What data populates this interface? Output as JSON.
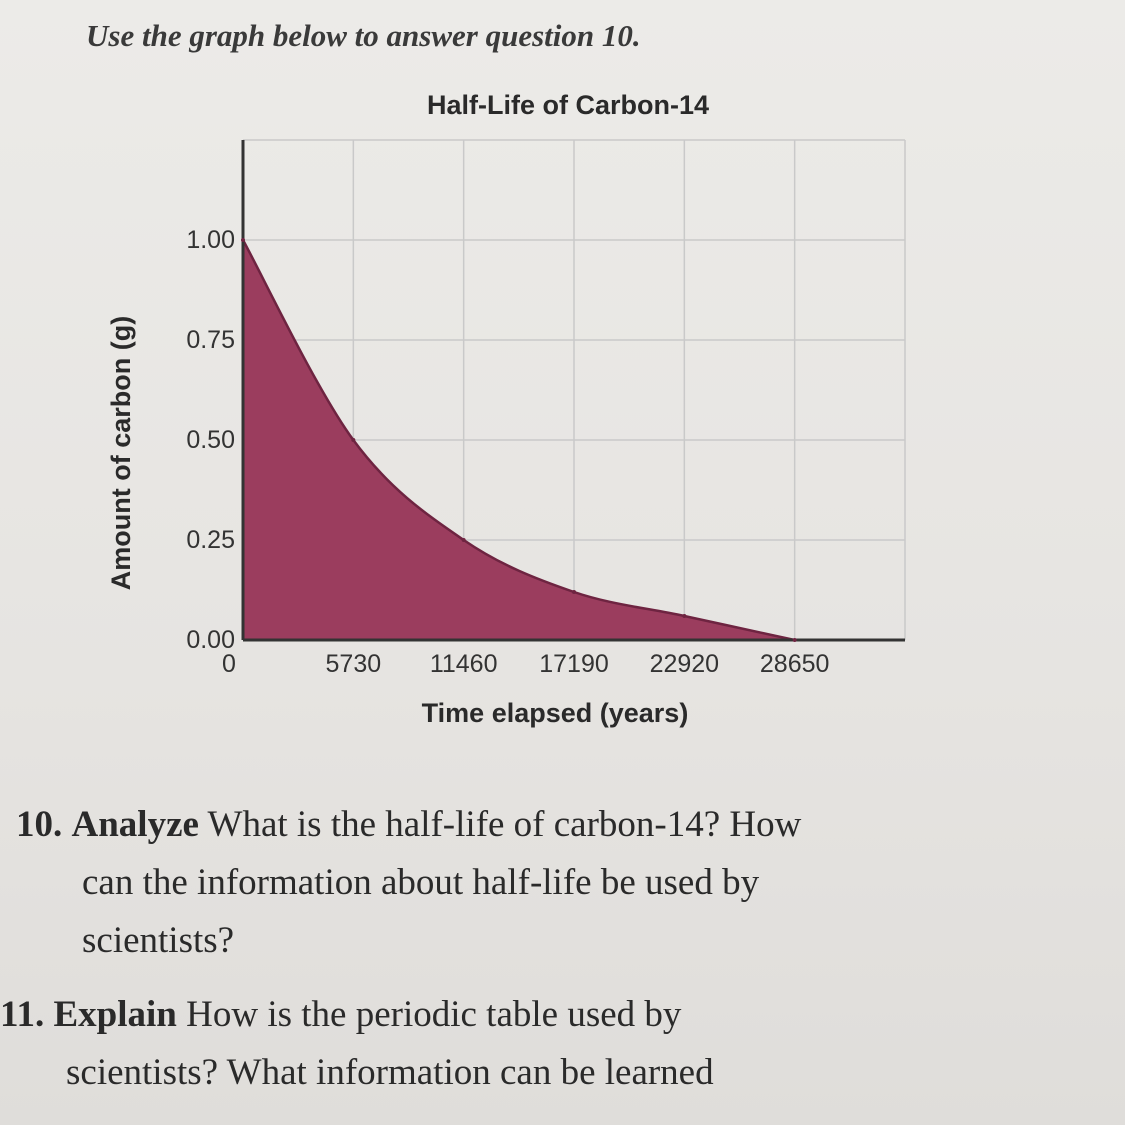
{
  "instruction": "Use the graph below to answer question 10.",
  "chart_data": {
    "type": "area",
    "title": "Half-Life of Carbon-14",
    "xlabel": "Time elapsed (years)",
    "ylabel": "Amount of carbon (g)",
    "x_ticks": [
      "0",
      "5730",
      "11460",
      "17190",
      "22920",
      "28650"
    ],
    "y_ticks": [
      "0.00",
      "0.25",
      "0.50",
      "0.75",
      "1.00"
    ],
    "xlim": [
      0,
      34380
    ],
    "ylim": [
      0,
      1.25
    ],
    "series": [
      {
        "x": [
          0,
          5730,
          11460,
          17190,
          22920,
          28650
        ],
        "y": [
          1.0,
          0.5,
          0.25,
          0.12,
          0.06,
          0.0
        ]
      }
    ],
    "grid": true,
    "colors": {
      "fill": "#9b3d5e",
      "line": "#6e2441",
      "grid": "#c9c9c9"
    }
  },
  "questions": [
    {
      "number": "10.",
      "keyword": "Analyze",
      "lines": [
        "What is the half-life of carbon-14? How",
        "can the information about half-life be used by",
        "scientists?"
      ]
    },
    {
      "number": "11.",
      "keyword": "Explain",
      "lines": [
        "How is the periodic table used by",
        "scientists? What information can be learned"
      ]
    }
  ]
}
